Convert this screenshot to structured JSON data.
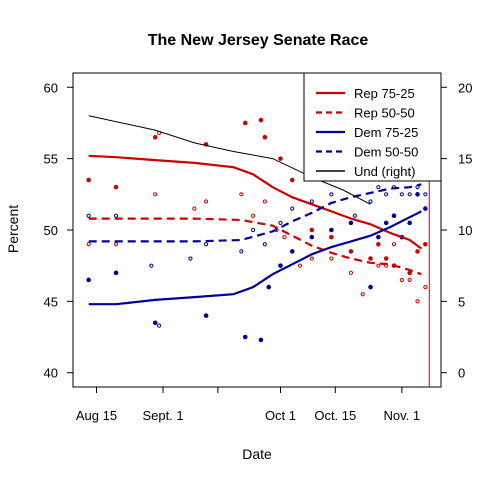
{
  "chart_data": {
    "type": "line",
    "title": "The New Jersey Senate Race",
    "xlabel": "Date",
    "ylabel": "Percent",
    "x_ticks": [
      {
        "label": "Aug 15",
        "day": 0
      },
      {
        "label": "Sept. 1",
        "day": 17
      },
      {
        "label": "",
        "day": 31
      },
      {
        "label": "Oct 1",
        "day": 47
      },
      {
        "label": "Oct. 15",
        "day": 61
      },
      {
        "label": "Nov. 1",
        "day": 78
      }
    ],
    "xlim": [
      -6,
      88
    ],
    "ylim": [
      39,
      61
    ],
    "y_ticks": [
      40,
      45,
      50,
      55,
      60
    ],
    "y2lim": [
      -1,
      21
    ],
    "y2_ticks": [
      0,
      5,
      10,
      15,
      20
    ],
    "legend_position": "top-right",
    "colors": {
      "rep": "#cc0000",
      "dem": "#000099",
      "und": "#000000",
      "vline": "#cc0000"
    },
    "vline_day": 85,
    "series": [
      {
        "name": "Rep 75-25",
        "color": "#cc0000",
        "style": "solid",
        "axis": "left",
        "points": [
          [
            -2,
            55.2
          ],
          [
            5,
            55.1
          ],
          [
            15,
            54.9
          ],
          [
            25,
            54.7
          ],
          [
            35,
            54.4
          ],
          [
            40,
            53.9
          ],
          [
            45,
            53.0
          ],
          [
            50,
            52.3
          ],
          [
            55,
            51.8
          ],
          [
            60,
            51.3
          ],
          [
            65,
            50.8
          ],
          [
            70,
            50.4
          ],
          [
            75,
            49.8
          ],
          [
            80,
            49.3
          ],
          [
            83,
            48.7
          ]
        ]
      },
      {
        "name": "Rep 50-50",
        "color": "#cc0000",
        "style": "dashed",
        "axis": "left",
        "points": [
          [
            -2,
            50.8
          ],
          [
            10,
            50.8
          ],
          [
            25,
            50.8
          ],
          [
            37,
            50.7
          ],
          [
            45,
            50.3
          ],
          [
            50,
            49.6
          ],
          [
            55,
            48.9
          ],
          [
            60,
            48.4
          ],
          [
            65,
            48.0
          ],
          [
            70,
            47.7
          ],
          [
            75,
            47.6
          ],
          [
            80,
            47.2
          ],
          [
            83,
            46.9
          ]
        ]
      },
      {
        "name": "Dem 75-25",
        "color": "#000099",
        "style": "solid",
        "axis": "left",
        "points": [
          [
            -2,
            44.8
          ],
          [
            5,
            44.8
          ],
          [
            15,
            45.1
          ],
          [
            25,
            45.3
          ],
          [
            35,
            45.5
          ],
          [
            40,
            46.0
          ],
          [
            45,
            46.9
          ],
          [
            50,
            47.6
          ],
          [
            55,
            48.3
          ],
          [
            60,
            48.8
          ],
          [
            65,
            49.2
          ],
          [
            70,
            49.6
          ],
          [
            75,
            50.2
          ],
          [
            80,
            50.9
          ],
          [
            83,
            51.3
          ]
        ]
      },
      {
        "name": "Dem 50-50",
        "color": "#000099",
        "style": "dashed",
        "axis": "left",
        "points": [
          [
            -2,
            49.2
          ],
          [
            10,
            49.2
          ],
          [
            25,
            49.2
          ],
          [
            37,
            49.3
          ],
          [
            45,
            49.9
          ],
          [
            50,
            50.6
          ],
          [
            55,
            51.2
          ],
          [
            60,
            51.9
          ],
          [
            65,
            52.3
          ],
          [
            70,
            52.6
          ],
          [
            75,
            52.9
          ],
          [
            80,
            53.0
          ],
          [
            83,
            53.2
          ]
        ]
      },
      {
        "name": "Und (right)",
        "color": "#000000",
        "style": "solid",
        "axis": "right",
        "points": [
          [
            -2,
            18.0
          ],
          [
            15,
            17.0
          ],
          [
            25,
            16.1
          ],
          [
            35,
            15.5
          ],
          [
            45,
            15.0
          ],
          [
            55,
            13.7
          ],
          [
            63,
            12.8
          ],
          [
            70,
            11.8
          ]
        ]
      }
    ],
    "scatter": [
      {
        "color": "#cc0000",
        "hollow": false,
        "points": [
          [
            -2,
            53.5
          ],
          [
            5,
            53.0
          ],
          [
            15,
            56.5
          ],
          [
            28,
            56.0
          ],
          [
            38,
            57.5
          ],
          [
            42,
            57.7
          ],
          [
            43,
            56.5
          ],
          [
            47,
            55.0
          ],
          [
            50,
            53.5
          ],
          [
            55,
            50.0
          ],
          [
            60,
            49.5
          ],
          [
            65,
            48.5
          ],
          [
            70,
            48.0
          ],
          [
            72,
            49.0
          ],
          [
            74,
            48.0
          ],
          [
            76,
            47.5
          ],
          [
            78,
            49.5
          ],
          [
            80,
            47.0
          ],
          [
            82,
            48.5
          ],
          [
            84,
            49.0
          ]
        ]
      },
      {
        "color": "#cc0000",
        "hollow": true,
        "points": [
          [
            -2,
            49.0
          ],
          [
            5,
            49.0
          ],
          [
            15,
            52.5
          ],
          [
            16,
            56.8
          ],
          [
            25,
            51.5
          ],
          [
            28,
            52.0
          ],
          [
            37,
            52.5
          ],
          [
            40,
            51.0
          ],
          [
            43,
            52.0
          ],
          [
            46,
            50.0
          ],
          [
            48,
            49.5
          ],
          [
            52,
            47.5
          ],
          [
            55,
            48.0
          ],
          [
            60,
            48.0
          ],
          [
            65,
            47.0
          ],
          [
            68,
            45.5
          ],
          [
            72,
            47.5
          ],
          [
            74,
            47.5
          ],
          [
            76,
            49.0
          ],
          [
            78,
            46.5
          ],
          [
            80,
            46.5
          ],
          [
            82,
            45.0
          ],
          [
            84,
            46.0
          ]
        ]
      },
      {
        "color": "#000099",
        "hollow": false,
        "points": [
          [
            -2,
            46.5
          ],
          [
            5,
            47.0
          ],
          [
            15,
            43.5
          ],
          [
            28,
            44.0
          ],
          [
            38,
            42.5
          ],
          [
            42,
            42.3
          ],
          [
            44,
            46.0
          ],
          [
            47,
            47.5
          ],
          [
            50,
            48.5
          ],
          [
            55,
            49.5
          ],
          [
            60,
            50.0
          ],
          [
            65,
            50.5
          ],
          [
            70,
            46.0
          ],
          [
            72,
            49.5
          ],
          [
            74,
            50.5
          ],
          [
            76,
            51.0
          ],
          [
            78,
            49.5
          ],
          [
            80,
            50.5
          ],
          [
            82,
            52.5
          ],
          [
            84,
            51.5
          ]
        ]
      },
      {
        "color": "#000099",
        "hollow": true,
        "points": [
          [
            -2,
            51.0
          ],
          [
            5,
            51.0
          ],
          [
            14,
            47.5
          ],
          [
            16,
            43.3
          ],
          [
            24,
            48.0
          ],
          [
            28,
            49.0
          ],
          [
            37,
            48.5
          ],
          [
            40,
            50.0
          ],
          [
            43,
            49.0
          ],
          [
            47,
            50.5
          ],
          [
            50,
            51.5
          ],
          [
            55,
            52.0
          ],
          [
            60,
            52.5
          ],
          [
            66,
            51.0
          ],
          [
            70,
            52.0
          ],
          [
            72,
            53.0
          ],
          [
            74,
            52.5
          ],
          [
            76,
            53.0
          ],
          [
            78,
            52.5
          ],
          [
            80,
            52.5
          ],
          [
            82,
            53.0
          ],
          [
            84,
            52.5
          ]
        ]
      }
    ]
  }
}
